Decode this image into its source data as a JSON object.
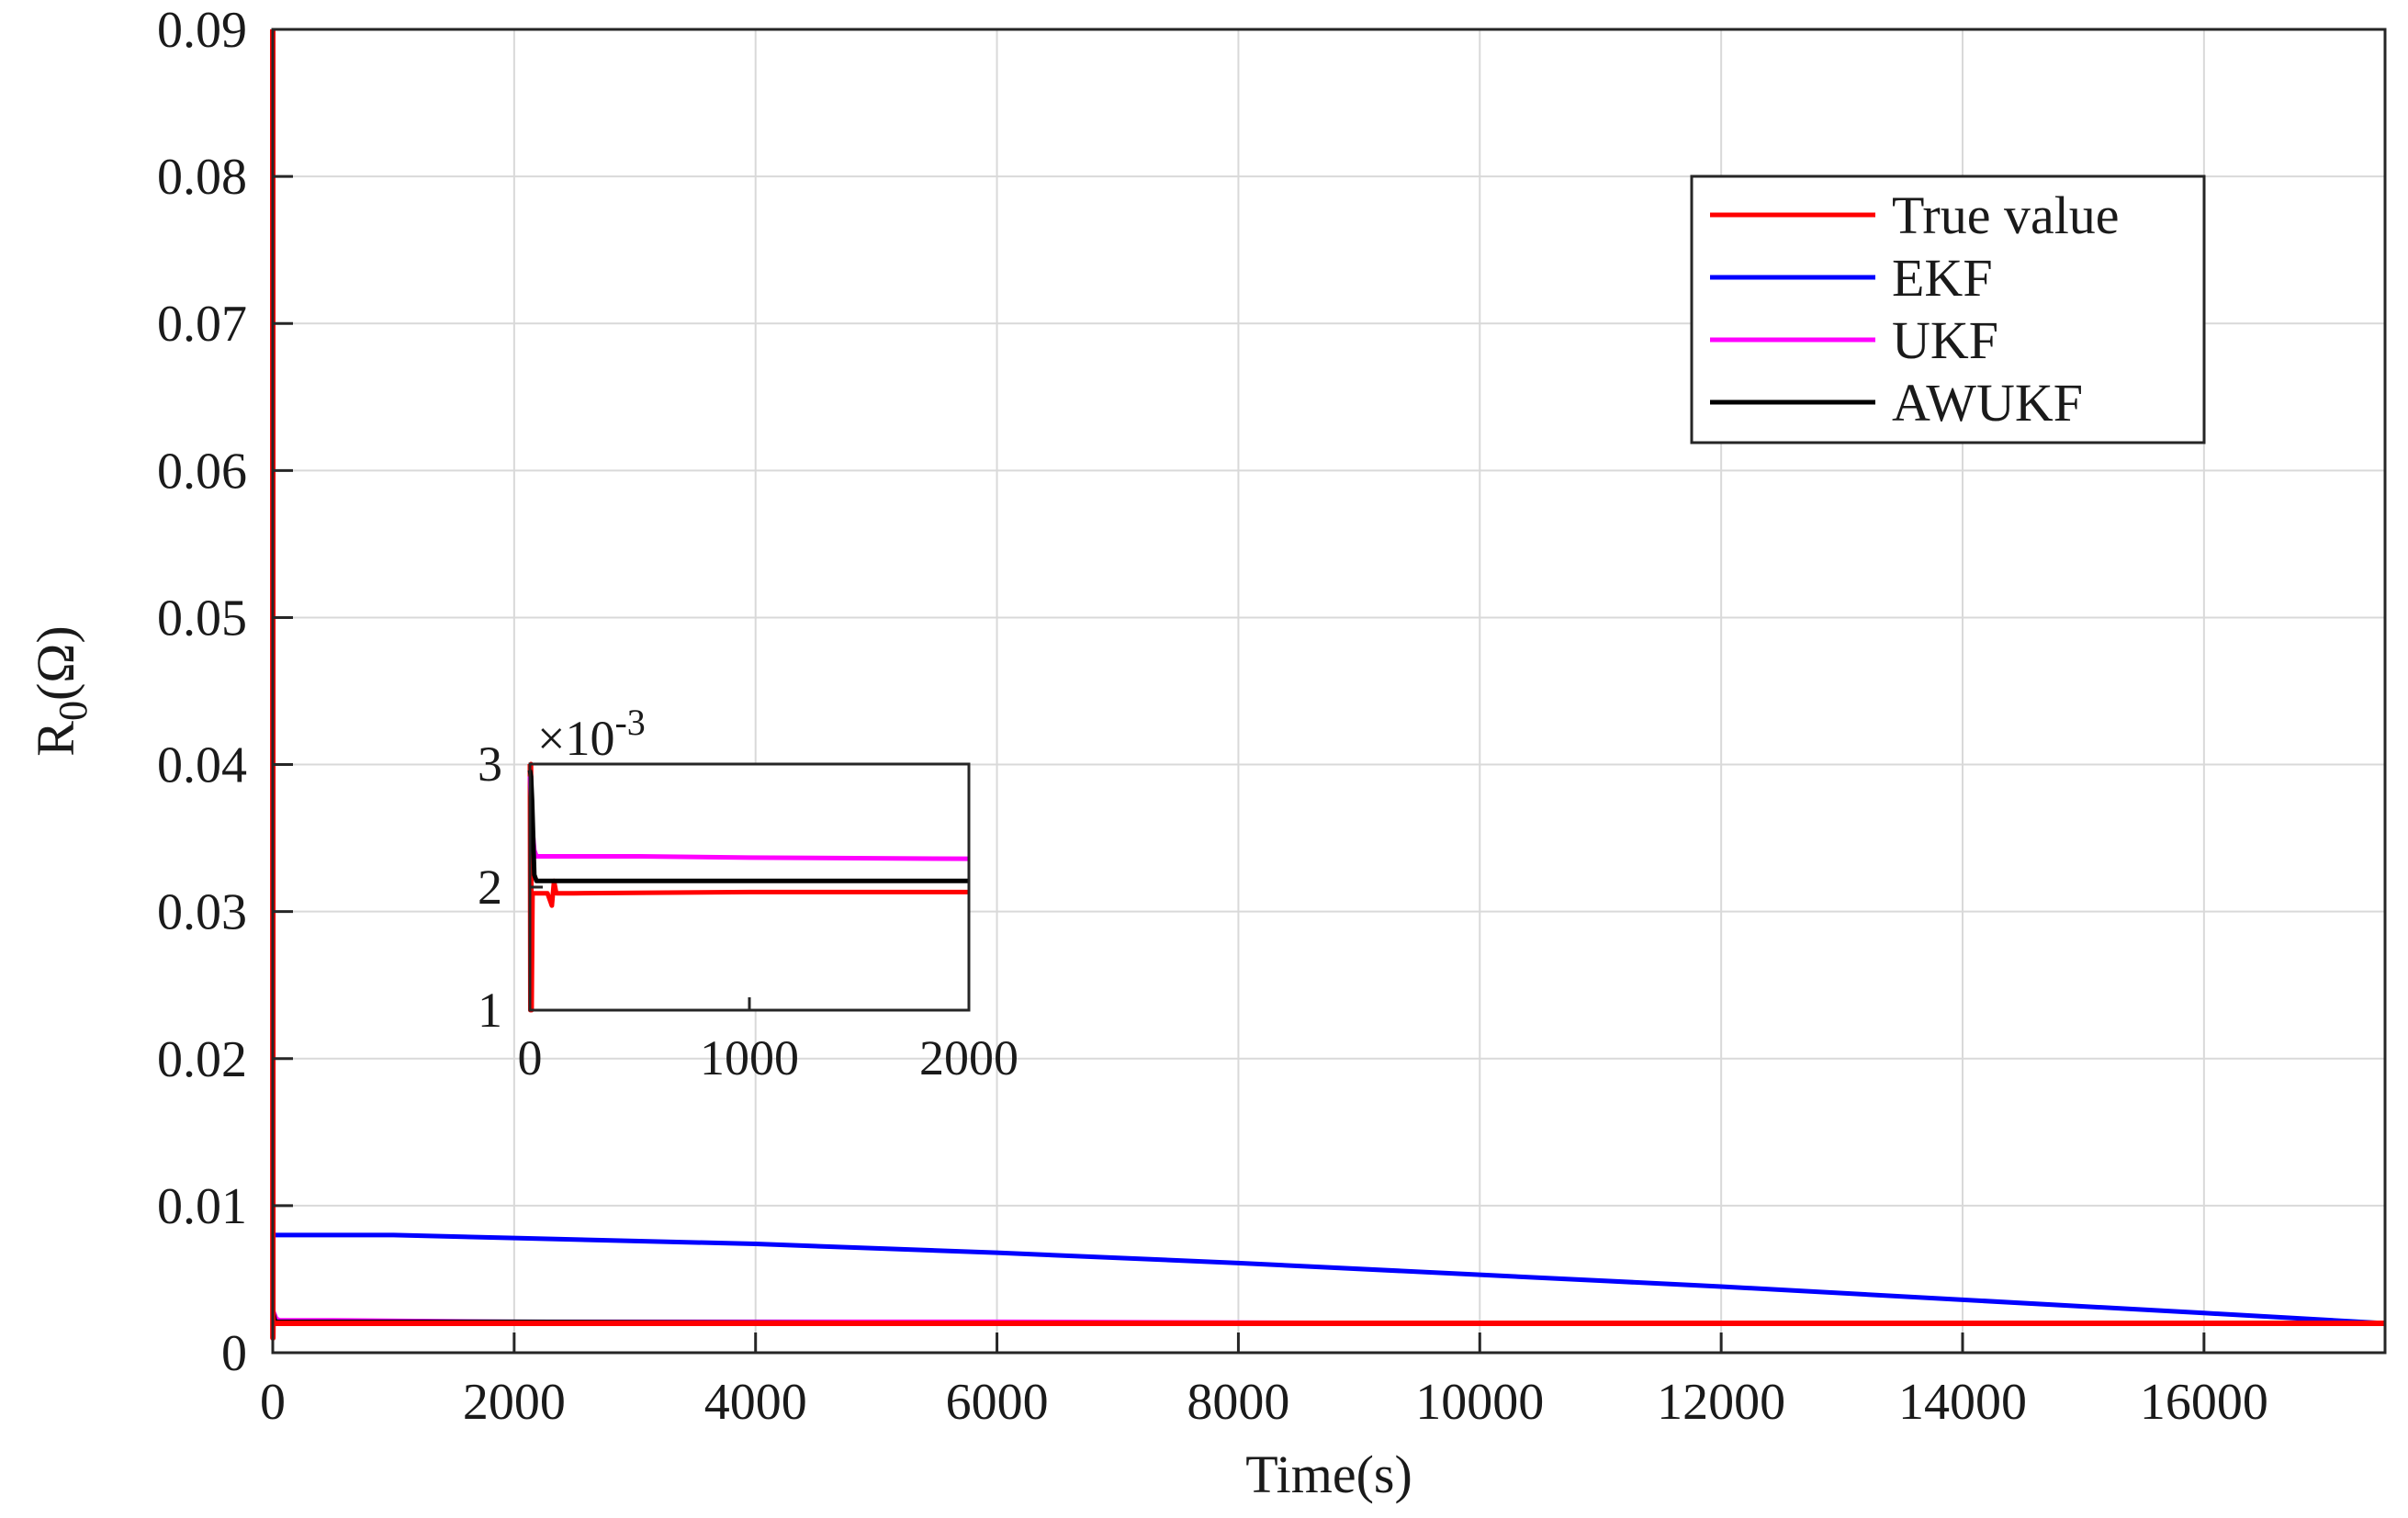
{
  "chart_data": {
    "type": "line",
    "xlabel": "Time(s)",
    "ylabel": "R",
    "ylabel_sub": "0",
    "ylabel_unit": "(Ω)",
    "xlim": [
      0,
      17500
    ],
    "ylim": [
      0,
      0.09
    ],
    "x_ticks": [
      0,
      2000,
      4000,
      6000,
      8000,
      10000,
      12000,
      14000,
      16000
    ],
    "x_tick_labels": [
      "0",
      "2000",
      "4000",
      "6000",
      "8000",
      "10000",
      "12000",
      "14000",
      "16000"
    ],
    "y_ticks": [
      0,
      0.01,
      0.02,
      0.03,
      0.04,
      0.05,
      0.06,
      0.07,
      0.08,
      0.09
    ],
    "y_tick_labels": [
      "0",
      "0.01",
      "0.02",
      "0.03",
      "0.04",
      "0.05",
      "0.06",
      "0.07",
      "0.08",
      "0.09"
    ],
    "grid": true,
    "legend_position": "top-right",
    "series": [
      {
        "name": "True value",
        "color": "#ff0000",
        "x": [
          0,
          1,
          2,
          10,
          100,
          2000,
          6000,
          10000,
          14000,
          17500
        ],
        "y": [
          0.09,
          0.001,
          0.0021,
          0.002,
          0.002,
          0.002,
          0.002,
          0.002,
          0.002,
          0.002
        ]
      },
      {
        "name": "EKF",
        "color": "#0000ff",
        "x": [
          0,
          1000,
          2000,
          4000,
          6000,
          8000,
          10000,
          12000,
          14000,
          16000,
          17500
        ],
        "y": [
          0.008,
          0.008,
          0.0078,
          0.0074,
          0.0068,
          0.0061,
          0.0053,
          0.0045,
          0.0036,
          0.0027,
          0.002
        ]
      },
      {
        "name": "UKF",
        "color": "#ff00ff",
        "x": [
          0,
          30,
          60,
          500,
          2000,
          6000,
          10000,
          14000,
          17500
        ],
        "y": [
          0.0029,
          0.0023,
          0.0022,
          0.0022,
          0.0021,
          0.0021,
          0.002,
          0.002,
          0.002
        ]
      },
      {
        "name": "AWUKF",
        "color": "#000000",
        "x": [
          0,
          20,
          50,
          500,
          2000,
          6000,
          10000,
          14000,
          17500
        ],
        "y": [
          0.0029,
          0.0021,
          0.0021,
          0.0021,
          0.0021,
          0.002,
          0.002,
          0.002,
          0.002
        ]
      }
    ],
    "inset": {
      "xlim": [
        0,
        2000
      ],
      "ylim": [
        1,
        3
      ],
      "x_ticks": [
        0,
        1000,
        2000
      ],
      "x_tick_labels": [
        "0",
        "1000",
        "2000"
      ],
      "y_ticks": [
        1,
        2,
        3
      ],
      "y_tick_labels": [
        "1",
        "2",
        "3"
      ],
      "multiplier_base": "×10",
      "multiplier_exp": "-3",
      "series": [
        {
          "name": "True value",
          "color": "#ff0000",
          "x": [
            0,
            2,
            5,
            8,
            12,
            20,
            40,
            80,
            100,
            110,
            120,
            200,
            1000,
            2000
          ],
          "y": [
            3.0,
            1.0,
            3.0,
            1.0,
            1.95,
            1.95,
            1.95,
            1.95,
            1.85,
            2.05,
            1.95,
            1.95,
            1.96,
            1.96
          ]
        },
        {
          "name": "UKF",
          "color": "#ff00ff",
          "x": [
            0,
            10,
            20,
            30,
            60,
            500,
            1000,
            2000
          ],
          "y": [
            2.9,
            2.5,
            2.3,
            2.25,
            2.25,
            2.25,
            2.24,
            2.23
          ]
        },
        {
          "name": "AWUKF",
          "color": "#000000",
          "x": [
            0,
            5,
            10,
            15,
            20,
            30,
            60,
            500,
            1000,
            2000
          ],
          "y": [
            2.95,
            2.9,
            2.7,
            2.4,
            2.1,
            2.05,
            2.05,
            2.05,
            2.05,
            2.05
          ]
        }
      ]
    }
  }
}
